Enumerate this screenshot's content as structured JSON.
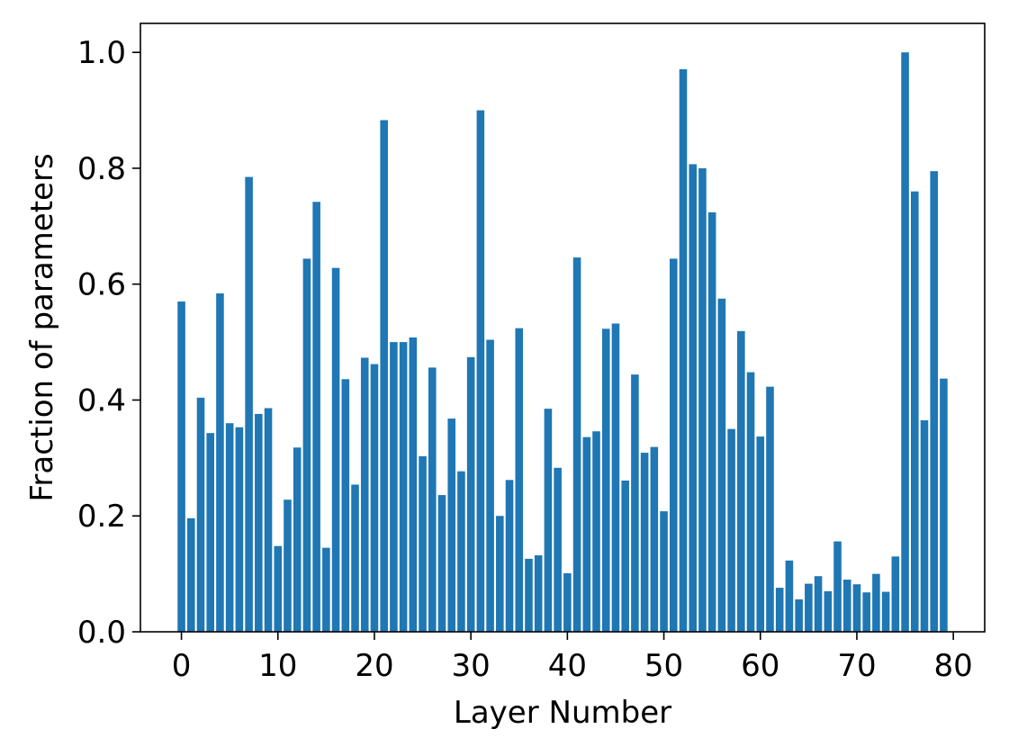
{
  "chart_data": {
    "type": "bar",
    "title": "",
    "xlabel": "Layer Number",
    "ylabel": "Fraction of parameters",
    "bar_color": "#1f77b4",
    "grid": false,
    "legend": "none",
    "xlim": [
      -4.25,
      83.25
    ],
    "ylim": [
      0,
      1.05
    ],
    "xticks": [
      0,
      10,
      20,
      30,
      40,
      50,
      60,
      70,
      80
    ],
    "xtick_labels": [
      "0",
      "10",
      "20",
      "30",
      "40",
      "50",
      "60",
      "70",
      "80"
    ],
    "yticks": [
      0,
      0.2,
      0.4,
      0.6,
      0.8,
      1.0
    ],
    "ytick_labels": [
      "0.0",
      "0.2",
      "0.4",
      "0.6",
      "0.8",
      "1.0"
    ],
    "categories": [
      0,
      1,
      2,
      3,
      4,
      5,
      6,
      7,
      8,
      9,
      10,
      11,
      12,
      13,
      14,
      15,
      16,
      17,
      18,
      19,
      20,
      21,
      22,
      23,
      24,
      25,
      26,
      27,
      28,
      29,
      30,
      31,
      32,
      33,
      34,
      35,
      36,
      37,
      38,
      39,
      40,
      41,
      42,
      43,
      44,
      45,
      46,
      47,
      48,
      49,
      50,
      51,
      52,
      53,
      54,
      55,
      56,
      57,
      58,
      59,
      60,
      61,
      62,
      63,
      64,
      65,
      66,
      67,
      68,
      69,
      70,
      71,
      72,
      73,
      74,
      75,
      76,
      77,
      78,
      79
    ],
    "values": [
      0.57,
      0.196,
      0.404,
      0.343,
      0.584,
      0.36,
      0.353,
      0.785,
      0.376,
      0.386,
      0.148,
      0.228,
      0.318,
      0.644,
      0.742,
      0.145,
      0.628,
      0.436,
      0.254,
      0.473,
      0.462,
      0.883,
      0.5,
      0.5,
      0.508,
      0.303,
      0.456,
      0.236,
      0.368,
      0.277,
      0.474,
      0.9,
      0.504,
      0.2,
      0.262,
      0.524,
      0.126,
      0.132,
      0.385,
      0.283,
      0.101,
      0.646,
      0.336,
      0.346,
      0.523,
      0.532,
      0.261,
      0.444,
      0.309,
      0.319,
      0.208,
      0.644,
      0.971,
      0.807,
      0.8,
      0.724,
      0.575,
      0.35,
      0.519,
      0.448,
      0.337,
      0.423,
      0.076,
      0.123,
      0.056,
      0.083,
      0.096,
      0.07,
      0.156,
      0.09,
      0.082,
      0.068,
      0.1,
      0.069,
      0.13,
      1.0,
      0.76,
      0.365,
      0.795,
      0.437
    ]
  }
}
